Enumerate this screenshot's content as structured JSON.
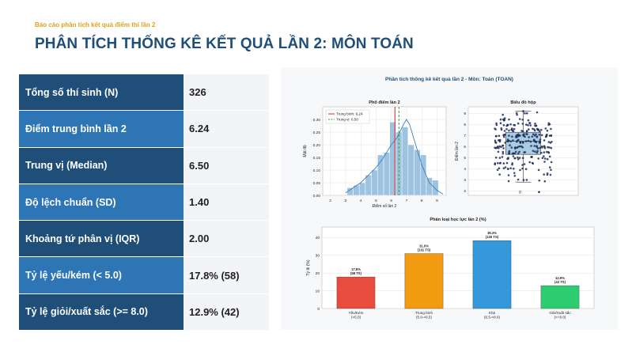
{
  "header": {
    "subtitle": "Báo cáo phân tích kết quả điểm thi lần 2",
    "title": "PHÂN TÍCH THỐNG KÊ KẾT QUẢ LẦN 2: MÔN TOÁN"
  },
  "colors": {
    "label_dark": "#1f4e79",
    "label_light": "#2e75b6",
    "accent": "#e0a21a"
  },
  "stats": [
    {
      "label": "Tổng số thí sinh (N)",
      "value": "326"
    },
    {
      "label": "Điểm trung bình lần 2",
      "value": "6.24"
    },
    {
      "label": "Trung vị (Median)",
      "value": "6.50"
    },
    {
      "label": "Độ lệch chuẩn (SD)",
      "value": "1.40"
    },
    {
      "label": "Khoảng tứ phân vị (IQR)",
      "value": "2.00"
    },
    {
      "label": "Tỷ lệ yếu/kém (< 5.0)",
      "value": "17.8% (58)"
    },
    {
      "label": "Tỷ lệ giỏi/xuất sắc (>= 8.0)",
      "value": "12.9% (42)"
    }
  ],
  "figure_title": "Phân tích thống kê kết quả lần 2 - Môn: Toán (TOAN)",
  "chart_data": [
    {
      "type": "bar",
      "subtype": "histogram",
      "title": "Phổ điểm lần 2",
      "xlabel": "Điểm số lần 2",
      "ylabel": "Mật độ",
      "xlim": [
        1.5,
        9.6
      ],
      "ylim": [
        0,
        0.35
      ],
      "xticks": [
        2,
        3,
        4,
        5,
        6,
        7,
        8,
        9
      ],
      "yticks": [
        0.0,
        0.05,
        0.1,
        0.15,
        0.2,
        0.25,
        0.3
      ],
      "bins": [
        {
          "x0": 3.1,
          "x1": 3.5,
          "y": 0.03
        },
        {
          "x0": 3.5,
          "x1": 3.9,
          "y": 0.04
        },
        {
          "x0": 3.9,
          "x1": 4.3,
          "y": 0.05
        },
        {
          "x0": 4.3,
          "x1": 4.7,
          "y": 0.08
        },
        {
          "x0": 4.7,
          "x1": 5.1,
          "y": 0.1
        },
        {
          "x0": 5.1,
          "x1": 5.5,
          "y": 0.16
        },
        {
          "x0": 5.5,
          "x1": 5.9,
          "y": 0.17
        },
        {
          "x0": 5.9,
          "x1": 6.3,
          "y": 0.29
        },
        {
          "x0": 6.3,
          "x1": 6.7,
          "y": 0.25
        },
        {
          "x0": 6.7,
          "x1": 7.1,
          "y": 0.27
        },
        {
          "x0": 7.1,
          "x1": 7.5,
          "y": 0.2
        },
        {
          "x0": 7.5,
          "x1": 7.9,
          "y": 0.18
        },
        {
          "x0": 7.9,
          "x1": 8.3,
          "y": 0.16
        },
        {
          "x0": 8.3,
          "x1": 8.7,
          "y": 0.07
        },
        {
          "x0": 8.7,
          "x1": 9.1,
          "y": 0.06
        }
      ],
      "kde": [
        [
          3.0,
          0.01
        ],
        [
          3.5,
          0.03
        ],
        [
          4.0,
          0.05
        ],
        [
          4.5,
          0.08
        ],
        [
          5.0,
          0.11
        ],
        [
          5.5,
          0.15
        ],
        [
          6.0,
          0.2
        ],
        [
          6.4,
          0.23
        ],
        [
          6.8,
          0.28
        ],
        [
          7.0,
          0.3
        ],
        [
          7.2,
          0.28
        ],
        [
          7.6,
          0.2
        ],
        [
          8.0,
          0.12
        ],
        [
          8.5,
          0.05
        ],
        [
          9.0,
          0.02
        ],
        [
          9.4,
          0.005
        ]
      ],
      "mean_line": {
        "name": "Trung bình: 6.24",
        "x": 6.24,
        "color": "#d62728"
      },
      "median_line": {
        "name": "Trung vị: 6.50",
        "x": 6.5,
        "color": "#2ca02c"
      },
      "legend": "top-left",
      "grid": true
    },
    {
      "type": "scatter",
      "subtype": "boxplot",
      "title": "Biểu đồ hộp",
      "ylabel": "Điểm lần 2",
      "ylim": [
        1.6,
        9.6
      ],
      "yticks": [
        2,
        3,
        4,
        5,
        6,
        7,
        8,
        9
      ],
      "box": {
        "min": 2.8,
        "q1": 5.3,
        "median": 6.5,
        "q3": 7.3,
        "max": 9.2
      },
      "outliers": [
        1.9,
        1.9,
        9.2
      ],
      "grid": true
    },
    {
      "type": "bar",
      "title": "Phân loại học lực lần 2 (%)",
      "ylabel": "Tỷ lệ (%)",
      "ylim": [
        0,
        46
      ],
      "yticks": [
        0,
        10,
        20,
        30,
        40
      ],
      "categories": [
        {
          "name": "Yếu/Kém",
          "range": "(<5.0)"
        },
        {
          "name": "Trung bình",
          "range": "(5.0-<6.5)"
        },
        {
          "name": "Khá",
          "range": "(6.5-<8.0)"
        },
        {
          "name": "Giỏi/Xuất sắc",
          "range": "(>=8.0)"
        }
      ],
      "values": [
        17.8,
        31.0,
        38.3,
        12.9
      ],
      "labels": [
        {
          "pct": "17.8%",
          "count": "(58 TS)"
        },
        {
          "pct": "31.0%",
          "count": "(101 TS)"
        },
        {
          "pct": "38.3%",
          "count": "(125 TS)"
        },
        {
          "pct": "12.9%",
          "count": "(42 TS)"
        }
      ],
      "colors": [
        "#e74c3c",
        "#f39c12",
        "#3498db",
        "#2ecc71"
      ],
      "grid": true
    }
  ]
}
